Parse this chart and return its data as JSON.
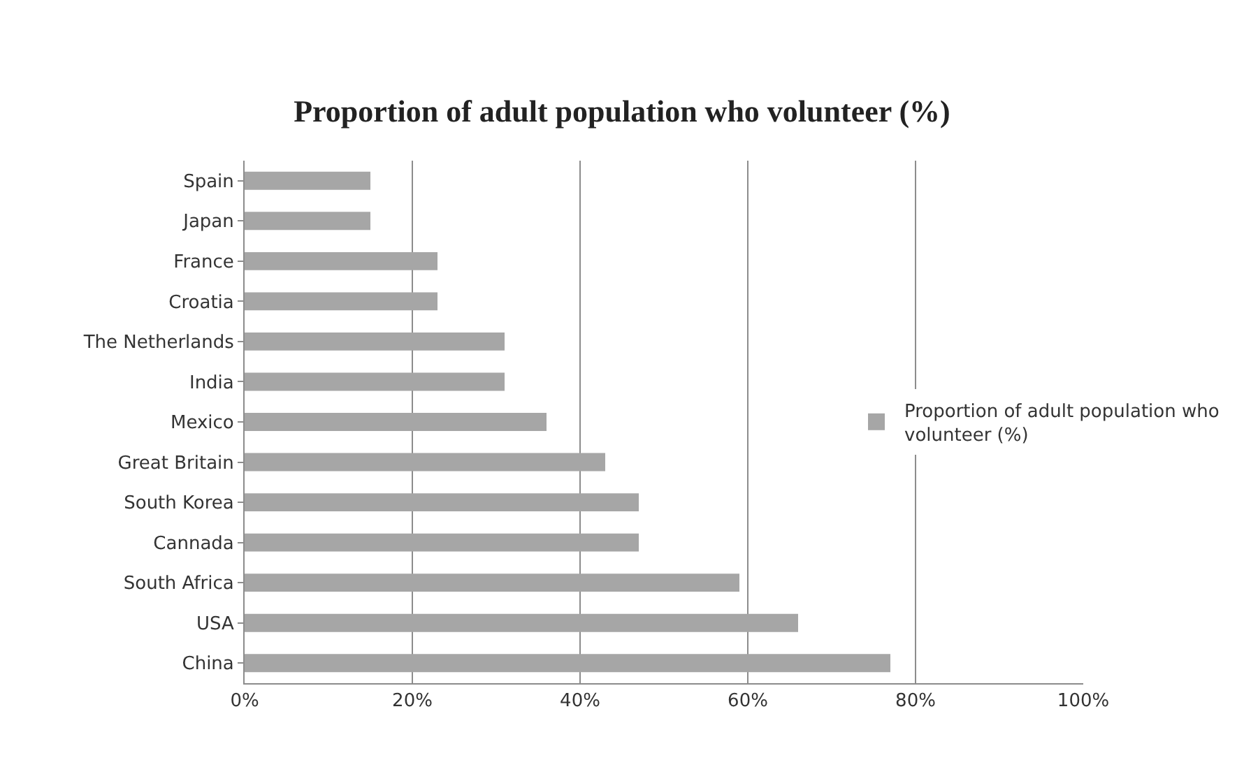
{
  "chart_data": {
    "type": "bar",
    "orientation": "horizontal",
    "title": "Proportion of adult population who volunteer (%)",
    "categories": [
      "Spain",
      "Japan",
      "France",
      "Croatia",
      "The Netherlands",
      "India",
      "Mexico",
      "Great Britain",
      "South Korea",
      "Cannada",
      "South Africa",
      "USA",
      "China"
    ],
    "series": [
      {
        "name": "Proportion of adult population who volunteer (%)",
        "color": "#a6a6a6",
        "values": [
          15,
          15,
          23,
          23,
          31,
          31,
          36,
          43,
          47,
          47,
          59,
          66,
          77
        ]
      }
    ],
    "xlim": [
      0,
      100
    ],
    "xticks": [
      {
        "value": 0,
        "label": "0%"
      },
      {
        "value": 20,
        "label": "20%"
      },
      {
        "value": 40,
        "label": "40%"
      },
      {
        "value": 60,
        "label": "60%"
      },
      {
        "value": 80,
        "label": "80%"
      },
      {
        "value": 100,
        "label": "100%"
      }
    ],
    "grid": "x",
    "legend": "right"
  }
}
